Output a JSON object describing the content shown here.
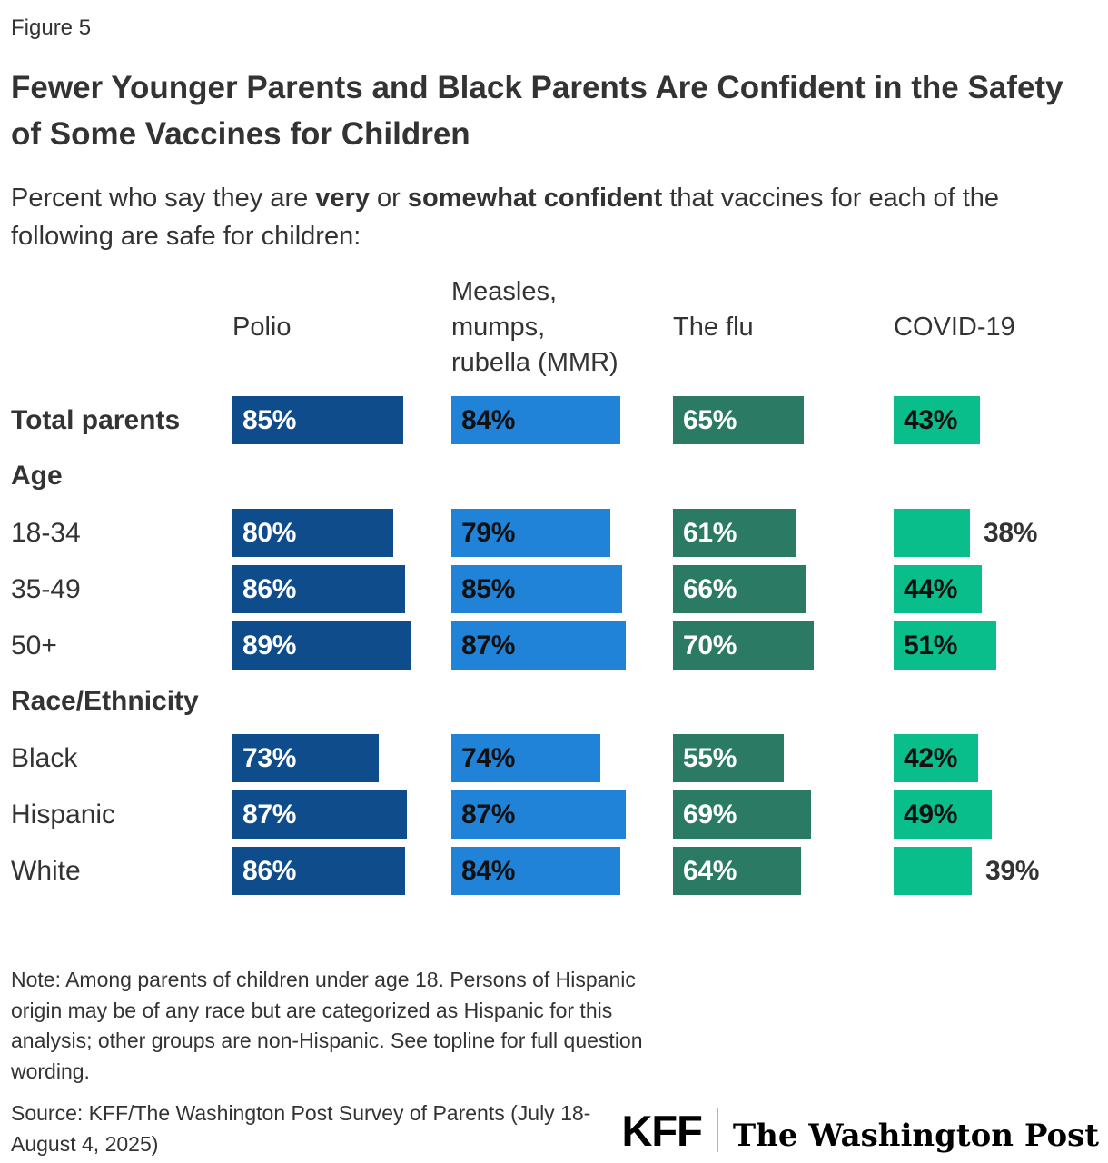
{
  "figure": {
    "label": "Figure 5",
    "title": "Fewer Younger Parents and Black Parents Are Confident in the Safety of Some Vaccines for Children"
  },
  "subtitle_segments": [
    {
      "text": "Percent who say they are ",
      "bold": false
    },
    {
      "text": "very",
      "bold": true
    },
    {
      "text": " or ",
      "bold": false
    },
    {
      "text": "somewhat confident",
      "bold": true
    },
    {
      "text": " that vaccines for each of the following are safe for children:",
      "bold": false
    }
  ],
  "chart_data": {
    "type": "bar",
    "orientation": "horizontal",
    "unit": "%",
    "value_range": [
      0,
      100
    ],
    "value_label_outside_below": 40,
    "columns": [
      {
        "label": "Polio",
        "bar_color": "#0E4C8C",
        "value_label_color": "#FFFFFF"
      },
      {
        "label": "Measles,\nmumps,\nrubella (MMR)",
        "bar_color": "#2183D8",
        "value_label_color": "#111111"
      },
      {
        "label": "The flu",
        "bar_color": "#2A7A64",
        "value_label_color": "#FFFFFF"
      },
      {
        "label": "COVID-19",
        "bar_color": "#0ABE8C",
        "value_label_color": "#111111"
      }
    ],
    "groups": [
      {
        "heading": null,
        "rows": [
          {
            "label": "Total parents",
            "bold": true,
            "values": [
              85,
              84,
              65,
              43
            ]
          }
        ]
      },
      {
        "heading": "Age",
        "rows": [
          {
            "label": "18-34",
            "bold": false,
            "values": [
              80,
              79,
              61,
              38
            ]
          },
          {
            "label": "35-49",
            "bold": false,
            "values": [
              86,
              85,
              66,
              44
            ]
          },
          {
            "label": "50+",
            "bold": false,
            "values": [
              89,
              87,
              70,
              51
            ]
          }
        ]
      },
      {
        "heading": "Race/Ethnicity",
        "rows": [
          {
            "label": "Black",
            "bold": false,
            "values": [
              73,
              74,
              55,
              42
            ]
          },
          {
            "label": "Hispanic",
            "bold": false,
            "values": [
              87,
              87,
              69,
              49
            ]
          },
          {
            "label": "White",
            "bold": false,
            "values": [
              86,
              84,
              64,
              39
            ]
          }
        ]
      }
    ]
  },
  "footer": {
    "note": "Note: Among parents of children under age 18. Persons of Hispanic origin may be of any race but are categorized as Hispanic for this analysis; other groups are non-Hispanic. See topline for full question wording.",
    "source": "Source: KFF/The Washington Post Survey of Parents (July 18-August 4, 2025)",
    "logos": {
      "kff": "KFF",
      "washington_post": "The Washington Post"
    }
  }
}
